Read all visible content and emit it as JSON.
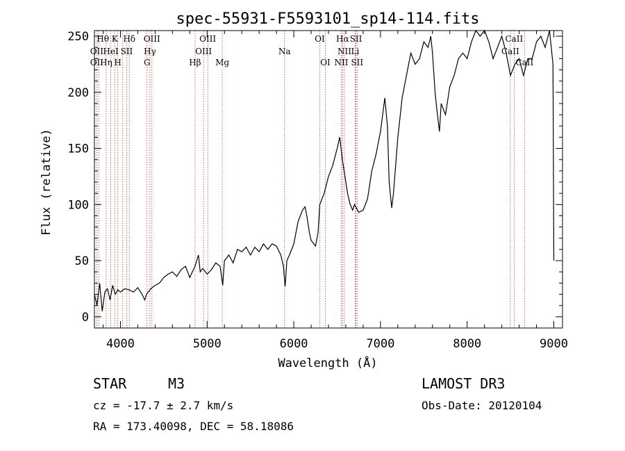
{
  "chart_data": {
    "type": "line",
    "title": "spec-55931-F5593101_sp14-114.fits",
    "xlabel": "Wavelength (Å)",
    "ylabel": "Flux (relative)",
    "xlim": [
      3700,
      9100
    ],
    "ylim": [
      -10,
      255
    ],
    "xticks": [
      4000,
      5000,
      6000,
      7000,
      8000,
      9000
    ],
    "yticks": [
      0,
      50,
      100,
      150,
      200,
      250
    ],
    "series": [
      {
        "name": "spectrum",
        "x": [
          3700,
          3730,
          3760,
          3790,
          3820,
          3850,
          3880,
          3910,
          3940,
          3970,
          4000,
          4050,
          4100,
          4150,
          4200,
          4250,
          4280,
          4300,
          4350,
          4400,
          4450,
          4500,
          4550,
          4600,
          4650,
          4700,
          4750,
          4800,
          4830,
          4860,
          4880,
          4900,
          4920,
          4950,
          5000,
          5050,
          5100,
          5150,
          5180,
          5200,
          5250,
          5300,
          5350,
          5400,
          5450,
          5500,
          5550,
          5600,
          5650,
          5700,
          5750,
          5800,
          5850,
          5880,
          5900,
          5920,
          5950,
          6000,
          6050,
          6100,
          6130,
          6150,
          6180,
          6200,
          6250,
          6280,
          6300,
          6350,
          6400,
          6450,
          6500,
          6530,
          6560,
          6580,
          6600,
          6620,
          6650,
          6680,
          6700,
          6750,
          6800,
          6850,
          6900,
          6950,
          7000,
          7050,
          7080,
          7100,
          7130,
          7150,
          7200,
          7250,
          7300,
          7350,
          7400,
          7450,
          7500,
          7550,
          7580,
          7600,
          7630,
          7650,
          7680,
          7700,
          7750,
          7800,
          7850,
          7900,
          7950,
          8000,
          8050,
          8100,
          8150,
          8200,
          8250,
          8300,
          8350,
          8400,
          8450,
          8500,
          8550,
          8600,
          8650,
          8700,
          8750,
          8800,
          8850,
          8900,
          8950,
          8990,
          9000
        ],
        "y": [
          20,
          10,
          30,
          5,
          22,
          25,
          15,
          28,
          20,
          24,
          22,
          25,
          24,
          22,
          26,
          20,
          15,
          20,
          25,
          28,
          30,
          35,
          38,
          40,
          36,
          42,
          45,
          35,
          40,
          45,
          50,
          55,
          40,
          43,
          38,
          42,
          48,
          45,
          28,
          50,
          55,
          48,
          60,
          58,
          62,
          55,
          62,
          58,
          65,
          60,
          65,
          63,
          55,
          45,
          27,
          50,
          55,
          65,
          85,
          95,
          98,
          90,
          75,
          68,
          63,
          75,
          100,
          110,
          125,
          135,
          150,
          160,
          140,
          130,
          120,
          110,
          100,
          95,
          100,
          93,
          95,
          105,
          130,
          145,
          165,
          195,
          170,
          120,
          97,
          110,
          160,
          195,
          215,
          235,
          225,
          230,
          245,
          240,
          250,
          235,
          200,
          185,
          165,
          190,
          180,
          205,
          215,
          230,
          235,
          230,
          245,
          255,
          250,
          255,
          245,
          230,
          240,
          250,
          235,
          215,
          225,
          230,
          215,
          230,
          230,
          245,
          250,
          240,
          255,
          225,
          50
        ]
      }
    ],
    "lines_top_row": [
      "Hθ",
      "K",
      "Hδ",
      "OIII",
      "OIII",
      "OI",
      "Hα",
      "SII",
      "CaII"
    ],
    "lines_mid_row": [
      "OII",
      "HeI",
      "SII",
      "Hγ",
      "OIII",
      "Na",
      "NII",
      "Li",
      "CaII"
    ],
    "lines_bot_row": [
      "OII",
      "Hη",
      "H",
      "G",
      "Hβ",
      "Mg",
      "OI",
      "NII",
      "SII",
      "CaII"
    ],
    "line_positions": [
      3727,
      3750,
      3835,
      3889,
      3934,
      3969,
      4026,
      4072,
      4102,
      4307,
      4340,
      4363,
      4861,
      4959,
      5007,
      5175,
      5893,
      6300,
      6364,
      6548,
      6563,
      6584,
      6708,
      6717,
      6731,
      8498,
      8542,
      8662
    ]
  },
  "info": {
    "object_class": "STAR",
    "subclass": "M3",
    "survey": "LAMOST DR3",
    "velocity": "cz = -17.7 ± 2.7 km/s",
    "obs_date": "Obs-Date: 20120104",
    "coords": "RA = 173.40098, DEC =  58.18086"
  }
}
